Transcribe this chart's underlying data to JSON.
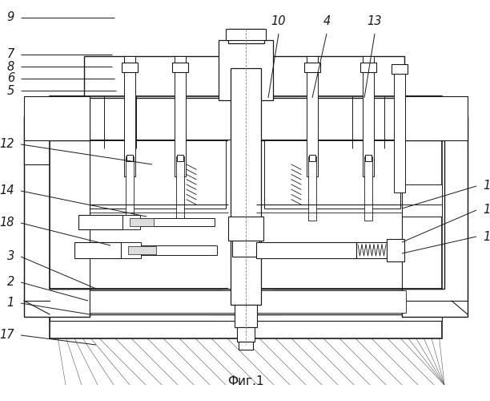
{
  "caption": "Фиг.1",
  "bg_color": "#ffffff",
  "line_color": "#1a1a1a",
  "fig_width": 6.12,
  "fig_height": 5.0,
  "dpi": 100,
  "label_fontsize": 10.5,
  "label_style": "italic"
}
